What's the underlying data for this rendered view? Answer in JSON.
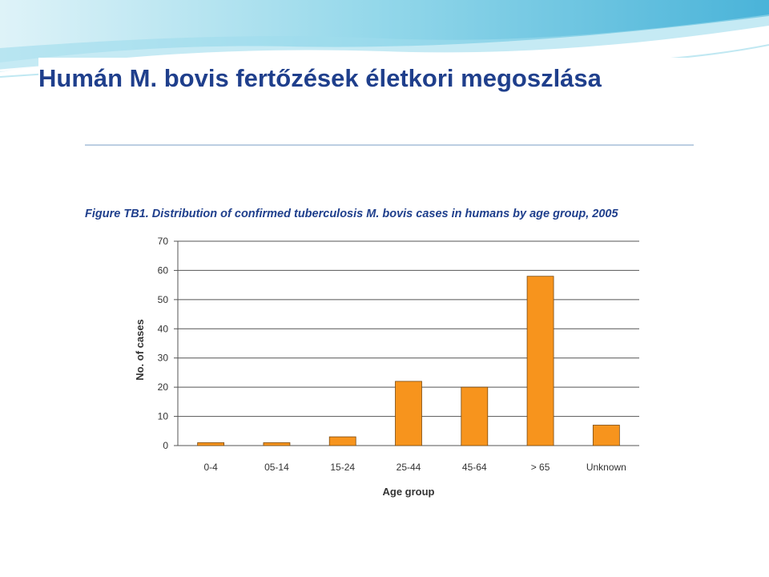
{
  "slide": {
    "title": "Humán M. bovis fertőzések életkori megoszlása",
    "accent_color": "#1f3f8c",
    "banner_colors": [
      "#c8ecf4",
      "#5cc3de",
      "#2a9fcf"
    ]
  },
  "chart_data": {
    "type": "bar",
    "title": "Figure TB1. Distribution of confirmed tuberculosis M. bovis cases in humans by age group, 2005",
    "categories": [
      "0-4",
      "05-14",
      "15-24",
      "25-44",
      "45-64",
      "> 65",
      "Unknown"
    ],
    "values": [
      1,
      1,
      3,
      22,
      20,
      58,
      7
    ],
    "xlabel": "Age group",
    "ylabel": "No. of cases",
    "ylim": [
      0,
      70
    ],
    "yticks": [
      0,
      10,
      20,
      30,
      40,
      50,
      60,
      70
    ],
    "grid": true,
    "legend": "none",
    "bar_color": "#f7941d"
  }
}
